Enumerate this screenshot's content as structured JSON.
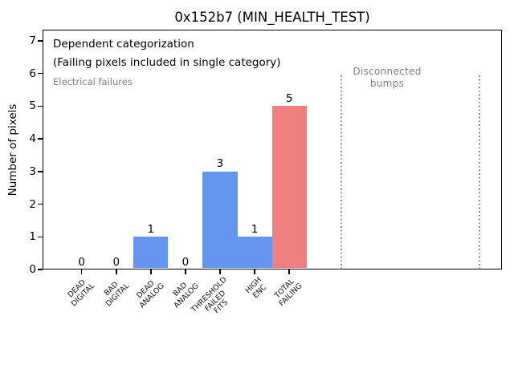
{
  "annotations": {
    "dependent_line1": "Dependent categorization",
    "dependent_line2": "(Failing pixels included in single category)",
    "electrical": "Electrical failures",
    "disconnected": "Disconnected\nbumps"
  },
  "colors": {
    "bar_default": "#6495ed",
    "bar_total_failing": "#f08080",
    "annotation_gray": "#7f7f7f",
    "divider_gray": "#8c8c8c",
    "axis_black": "#000000",
    "background": "#ffffff"
  },
  "chart_data": {
    "type": "bar",
    "title": "0x152b7 (MIN_HEALTH_TEST)",
    "xlabel": "",
    "ylabel": "Number of pixels",
    "categories": [
      "DEAD\nDIGITAL",
      "BAD\nDIGITAL",
      "DEAD\nANALOG",
      "BAD\nANALOG",
      "THRESHOLD\nFAILED\nFITS",
      "HIGH\nENC",
      "TOTAL\nFAILING"
    ],
    "values": [
      0,
      0,
      1,
      0,
      3,
      1,
      5
    ],
    "value_labels": [
      "0",
      "0",
      "1",
      "0",
      "3",
      "1",
      "5"
    ],
    "bar_colors": [
      "#6495ed",
      "#6495ed",
      "#6495ed",
      "#6495ed",
      "#6495ed",
      "#6495ed",
      "#f08080"
    ],
    "yticks": [
      0,
      1,
      2,
      3,
      4,
      5,
      6,
      7
    ],
    "ylim": [
      0,
      7.35
    ],
    "grid": false,
    "legend": null,
    "vlines": {
      "x": [
        7.5,
        11.5
      ],
      "ymin": 0,
      "ymax": 6,
      "style": "dotted",
      "color": "#8c8c8c"
    }
  }
}
